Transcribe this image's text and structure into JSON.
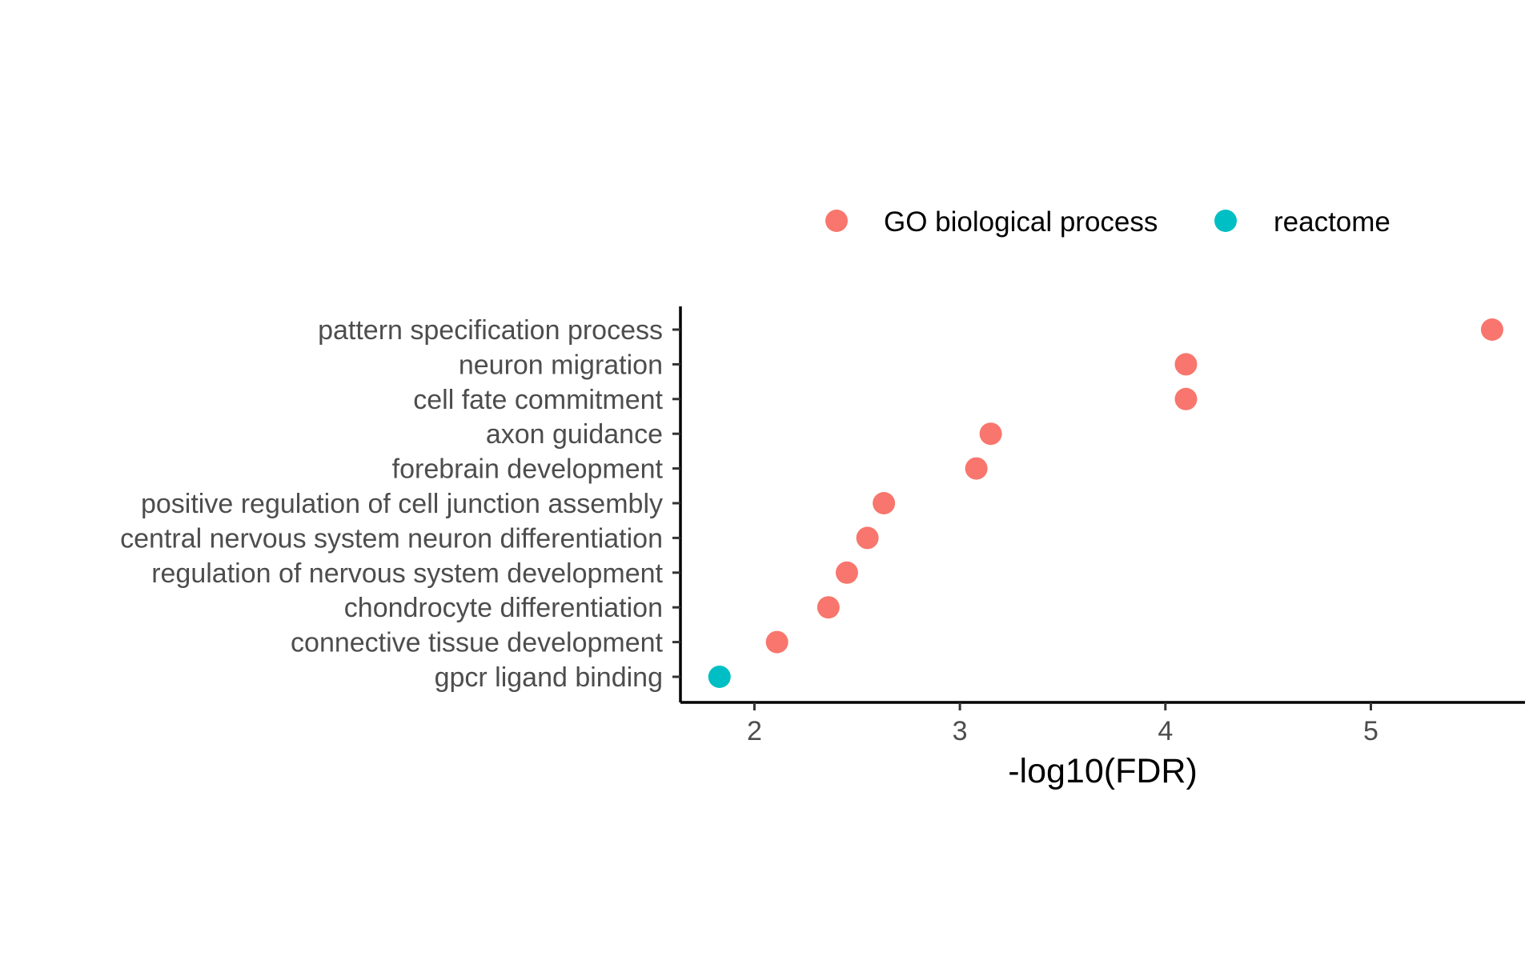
{
  "chart_data": {
    "type": "scatter",
    "xlabel": "-log10(FDR)",
    "ylabel": "",
    "xlim": [
      1.64,
      5.75
    ],
    "xticks": [
      2,
      3,
      4,
      5
    ],
    "grid": false,
    "legend_position": "top",
    "categories": [
      "pattern specification process",
      "neuron migration",
      "cell fate commitment",
      "axon guidance",
      "forebrain development",
      "positive regulation of cell junction assembly",
      "central nervous system neuron differentiation",
      "regulation of nervous system development",
      "chondrocyte differentiation",
      "connective tissue development",
      "gpcr ligand binding"
    ],
    "series": [
      {
        "name": "GO biological process",
        "color": "#F8766D",
        "points": [
          {
            "category": "pattern specification process",
            "x": 5.59
          },
          {
            "category": "neuron migration",
            "x": 4.1
          },
          {
            "category": "cell fate commitment",
            "x": 4.1
          },
          {
            "category": "axon guidance",
            "x": 3.15
          },
          {
            "category": "forebrain development",
            "x": 3.08
          },
          {
            "category": "positive regulation of cell junction assembly",
            "x": 2.63
          },
          {
            "category": "central nervous system neuron differentiation",
            "x": 2.55
          },
          {
            "category": "regulation of nervous system development",
            "x": 2.45
          },
          {
            "category": "chondrocyte differentiation",
            "x": 2.36
          },
          {
            "category": "connective tissue development",
            "x": 2.11
          }
        ]
      },
      {
        "name": "reactome",
        "color": "#00BFC4",
        "points": [
          {
            "category": "gpcr ligand binding",
            "x": 1.83
          }
        ]
      }
    ]
  }
}
